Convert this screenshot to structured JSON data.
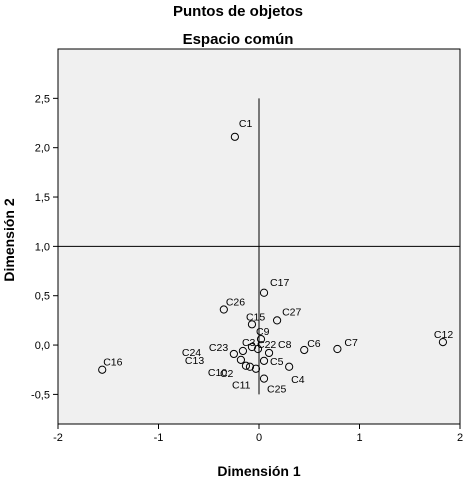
{
  "chart_data": {
    "type": "scatter",
    "title": "Puntos de objetos",
    "subtitle": "Espacio común",
    "xlabel": "Dimensión 1",
    "ylabel": "Dimensión 2",
    "xlim": [
      -2,
      2
    ],
    "ylim": [
      -0.8,
      3.0
    ],
    "xticks": [
      -2,
      -1,
      0,
      1,
      2
    ],
    "xtick_labels": [
      "-2",
      "-1",
      "0",
      "1",
      "2"
    ],
    "yticks": [
      -0.5,
      0,
      0.5,
      1,
      1.5,
      2,
      2.5
    ],
    "ytick_labels": [
      "-0,5",
      "0,0",
      "0,5",
      "1,0",
      "1,5",
      "2,0",
      "2,5"
    ],
    "reference_lines": {
      "vertical_x": 0,
      "vertical_from_y": -0.5,
      "vertical_to_y": 2.5,
      "horizontal_y": 1.0
    },
    "background": "#f0f0f0",
    "marker": "hollow-circle",
    "points": [
      {
        "label": "C1",
        "x": -0.24,
        "y": 2.11
      },
      {
        "label": "C17",
        "x": 0.05,
        "y": 0.53
      },
      {
        "label": "C26",
        "x": -0.35,
        "y": 0.36
      },
      {
        "label": "C27",
        "x": 0.18,
        "y": 0.25
      },
      {
        "label": "C15",
        "x": -0.07,
        "y": 0.21
      },
      {
        "label": "C9",
        "x": 0.02,
        "y": 0.06
      },
      {
        "label": "C23",
        "x": -0.16,
        "y": -0.06
      },
      {
        "label": "C3",
        "x": -0.07,
        "y": -0.02
      },
      {
        "label": "C22",
        "x": -0.01,
        "y": -0.04
      },
      {
        "label": "C8",
        "x": 0.1,
        "y": -0.08
      },
      {
        "label": "C6",
        "x": 0.45,
        "y": -0.05
      },
      {
        "label": "C7",
        "x": 0.78,
        "y": -0.04
      },
      {
        "label": "C12",
        "x": 1.83,
        "y": 0.03
      },
      {
        "label": "C16",
        "x": -1.56,
        "y": -0.25
      },
      {
        "label": "C24",
        "x": -0.25,
        "y": -0.09
      },
      {
        "label": "C13",
        "x": -0.18,
        "y": -0.15
      },
      {
        "label": "C10",
        "x": -0.13,
        "y": -0.21
      },
      {
        "label": "C2",
        "x": -0.09,
        "y": -0.22
      },
      {
        "label": "C11",
        "x": -0.03,
        "y": -0.24
      },
      {
        "label": "C5",
        "x": 0.05,
        "y": -0.16
      },
      {
        "label": "C4",
        "x": 0.3,
        "y": -0.22
      },
      {
        "label": "C25",
        "x": 0.05,
        "y": -0.34
      }
    ]
  }
}
